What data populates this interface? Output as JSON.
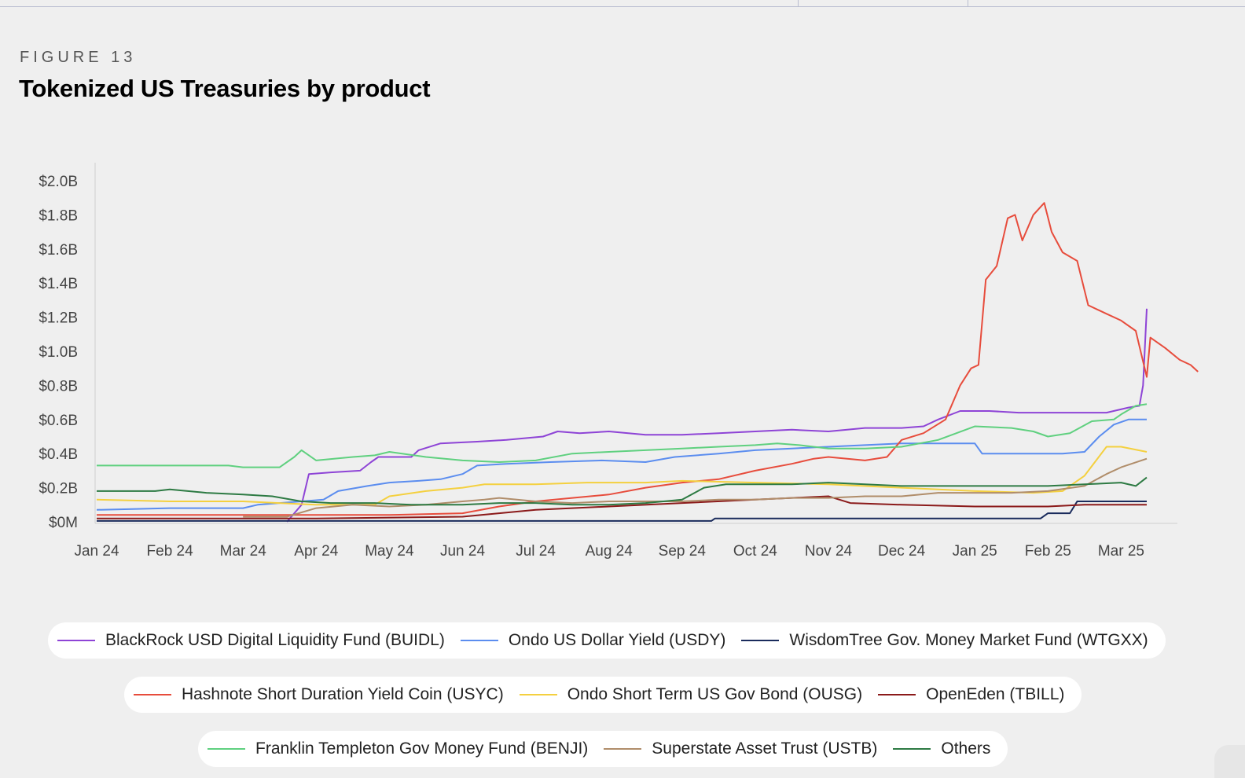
{
  "figure": {
    "label": "FIGURE 13",
    "title": "Tokenized US Treasuries by product"
  },
  "chart_data": {
    "type": "line",
    "title": "Tokenized US Treasuries by product",
    "xlabel": "",
    "ylabel": "",
    "ylim": [
      0,
      2.0
    ],
    "y_unit": "$B",
    "y_ticks": [
      "$0M",
      "$0.2B",
      "$0.4B",
      "$0.6B",
      "$0.8B",
      "$1.0B",
      "$1.2B",
      "$1.4B",
      "$1.6B",
      "$1.8B",
      "$2.0B"
    ],
    "x_ticks": [
      "Jan 24",
      "Feb 24",
      "Mar 24",
      "Apr 24",
      "May 24",
      "Jun 24",
      "Jul 24",
      "Aug 24",
      "Sep 24",
      "Oct 24",
      "Nov 24",
      "Dec 24",
      "Jan 25",
      "Feb 25",
      "Mar 25"
    ],
    "x_unit": "months since Jan 24",
    "grid": false,
    "legend_position": "bottom",
    "series": [
      {
        "name": "BlackRock USD Digital Liquidity Fund (BUIDL)",
        "color": "#8e44d6",
        "points": [
          [
            2.6,
            0
          ],
          [
            2.8,
            0.1
          ],
          [
            2.9,
            0.28
          ],
          [
            3.2,
            0.29
          ],
          [
            3.6,
            0.3
          ],
          [
            3.75,
            0.35
          ],
          [
            3.85,
            0.38
          ],
          [
            4.3,
            0.38
          ],
          [
            4.4,
            0.42
          ],
          [
            4.7,
            0.46
          ],
          [
            5.2,
            0.47
          ],
          [
            5.6,
            0.48
          ],
          [
            6.1,
            0.5
          ],
          [
            6.3,
            0.53
          ],
          [
            6.6,
            0.52
          ],
          [
            7.0,
            0.53
          ],
          [
            7.5,
            0.51
          ],
          [
            8.0,
            0.51
          ],
          [
            8.5,
            0.52
          ],
          [
            9.0,
            0.53
          ],
          [
            9.5,
            0.54
          ],
          [
            10.0,
            0.53
          ],
          [
            10.5,
            0.55
          ],
          [
            11.0,
            0.55
          ],
          [
            11.3,
            0.56
          ],
          [
            11.5,
            0.6
          ],
          [
            11.8,
            0.65
          ],
          [
            12.2,
            0.65
          ],
          [
            12.6,
            0.64
          ],
          [
            13.2,
            0.64
          ],
          [
            13.8,
            0.64
          ],
          [
            14.1,
            0.67
          ],
          [
            14.25,
            0.68
          ],
          [
            14.3,
            0.8
          ],
          [
            14.35,
            1.25
          ]
        ]
      },
      {
        "name": "Ondo US Dollar Yield (USDY)",
        "color": "#5b8def",
        "points": [
          [
            0,
            0.07
          ],
          [
            1.0,
            0.08
          ],
          [
            2.0,
            0.08
          ],
          [
            2.2,
            0.1
          ],
          [
            2.8,
            0.12
          ],
          [
            3.1,
            0.13
          ],
          [
            3.3,
            0.18
          ],
          [
            3.7,
            0.21
          ],
          [
            4.0,
            0.23
          ],
          [
            4.4,
            0.24
          ],
          [
            4.7,
            0.25
          ],
          [
            5.0,
            0.28
          ],
          [
            5.2,
            0.33
          ],
          [
            5.6,
            0.34
          ],
          [
            6.2,
            0.35
          ],
          [
            6.9,
            0.36
          ],
          [
            7.5,
            0.35
          ],
          [
            7.9,
            0.38
          ],
          [
            8.5,
            0.4
          ],
          [
            9.0,
            0.42
          ],
          [
            9.5,
            0.43
          ],
          [
            10.0,
            0.44
          ],
          [
            10.5,
            0.45
          ],
          [
            11.0,
            0.46
          ],
          [
            11.5,
            0.46
          ],
          [
            12.0,
            0.46
          ],
          [
            12.1,
            0.4
          ],
          [
            12.6,
            0.4
          ],
          [
            13.2,
            0.4
          ],
          [
            13.5,
            0.41
          ],
          [
            13.7,
            0.5
          ],
          [
            13.9,
            0.57
          ],
          [
            14.1,
            0.6
          ],
          [
            14.35,
            0.6
          ]
        ]
      },
      {
        "name": "WisdomTree Gov. Money Market Fund (WTGXX)",
        "color": "#1a2b5c",
        "points": [
          [
            0,
            0.005
          ],
          [
            3.0,
            0.005
          ],
          [
            6.0,
            0.005
          ],
          [
            8.4,
            0.005
          ],
          [
            8.45,
            0.02
          ],
          [
            11.0,
            0.02
          ],
          [
            12.0,
            0.02
          ],
          [
            12.9,
            0.02
          ],
          [
            13.0,
            0.05
          ],
          [
            13.3,
            0.05
          ],
          [
            13.4,
            0.12
          ],
          [
            14.35,
            0.12
          ]
        ]
      },
      {
        "name": "Hashnote Short Duration Yield Coin (USYC)",
        "color": "#e74c3c",
        "points": [
          [
            0,
            0.04
          ],
          [
            2.0,
            0.04
          ],
          [
            3.0,
            0.04
          ],
          [
            4.0,
            0.04
          ],
          [
            5.0,
            0.05
          ],
          [
            5.5,
            0.09
          ],
          [
            6.0,
            0.12
          ],
          [
            6.5,
            0.14
          ],
          [
            7.0,
            0.16
          ],
          [
            7.5,
            0.2
          ],
          [
            8.0,
            0.23
          ],
          [
            8.5,
            0.25
          ],
          [
            9.0,
            0.3
          ],
          [
            9.5,
            0.34
          ],
          [
            9.8,
            0.37
          ],
          [
            10.0,
            0.38
          ],
          [
            10.5,
            0.36
          ],
          [
            10.8,
            0.38
          ],
          [
            11.0,
            0.48
          ],
          [
            11.3,
            0.52
          ],
          [
            11.6,
            0.6
          ],
          [
            11.8,
            0.8
          ],
          [
            11.95,
            0.9
          ],
          [
            12.05,
            0.92
          ],
          [
            12.15,
            1.42
          ],
          [
            12.3,
            1.5
          ],
          [
            12.45,
            1.78
          ],
          [
            12.55,
            1.8
          ],
          [
            12.65,
            1.65
          ],
          [
            12.8,
            1.8
          ],
          [
            12.95,
            1.87
          ],
          [
            13.05,
            1.7
          ],
          [
            13.2,
            1.58
          ],
          [
            13.4,
            1.53
          ],
          [
            13.55,
            1.27
          ],
          [
            13.8,
            1.22
          ],
          [
            14.0,
            1.18
          ],
          [
            14.2,
            1.12
          ],
          [
            14.4,
            1.08
          ],
          [
            14.6,
            1.02
          ],
          [
            14.8,
            0.95
          ],
          [
            14.95,
            0.92
          ],
          [
            15.05,
            0.88
          ],
          [
            14.35,
            0.85
          ]
        ]
      },
      {
        "name": "Ondo Short Term US Gov Bond (OUSG)",
        "color": "#f4d03f",
        "points": [
          [
            0,
            0.13
          ],
          [
            1.0,
            0.12
          ],
          [
            2.0,
            0.12
          ],
          [
            3.0,
            0.1
          ],
          [
            3.8,
            0.1
          ],
          [
            4.0,
            0.15
          ],
          [
            4.5,
            0.18
          ],
          [
            5.0,
            0.2
          ],
          [
            5.3,
            0.22
          ],
          [
            6.0,
            0.22
          ],
          [
            6.7,
            0.23
          ],
          [
            7.5,
            0.23
          ],
          [
            8.0,
            0.24
          ],
          [
            9.0,
            0.23
          ],
          [
            10.0,
            0.22
          ],
          [
            11.0,
            0.2
          ],
          [
            12.0,
            0.18
          ],
          [
            12.8,
            0.17
          ],
          [
            13.2,
            0.18
          ],
          [
            13.5,
            0.27
          ],
          [
            13.8,
            0.44
          ],
          [
            14.0,
            0.44
          ],
          [
            14.35,
            0.41
          ]
        ]
      },
      {
        "name": "OpenEden (TBILL)",
        "color": "#8b1a1a",
        "points": [
          [
            0,
            0.02
          ],
          [
            3.0,
            0.02
          ],
          [
            5.0,
            0.03
          ],
          [
            5.5,
            0.05
          ],
          [
            6.0,
            0.07
          ],
          [
            7.0,
            0.09
          ],
          [
            8.0,
            0.11
          ],
          [
            9.0,
            0.13
          ],
          [
            9.5,
            0.14
          ],
          [
            10.0,
            0.15
          ],
          [
            10.3,
            0.11
          ],
          [
            11.0,
            0.1
          ],
          [
            12.0,
            0.09
          ],
          [
            13.0,
            0.09
          ],
          [
            13.5,
            0.1
          ],
          [
            14.35,
            0.1
          ]
        ]
      },
      {
        "name": "Franklin Templeton Gov Money Fund (BENJI)",
        "color": "#5fd07f",
        "points": [
          [
            0,
            0.33
          ],
          [
            1.0,
            0.33
          ],
          [
            1.5,
            0.33
          ],
          [
            1.8,
            0.33
          ],
          [
            2.0,
            0.32
          ],
          [
            2.5,
            0.32
          ],
          [
            2.7,
            0.38
          ],
          [
            2.8,
            0.42
          ],
          [
            3.0,
            0.36
          ],
          [
            3.5,
            0.38
          ],
          [
            3.8,
            0.39
          ],
          [
            4.0,
            0.41
          ],
          [
            4.5,
            0.38
          ],
          [
            5.0,
            0.36
          ],
          [
            5.5,
            0.35
          ],
          [
            6.0,
            0.36
          ],
          [
            6.5,
            0.4
          ],
          [
            7.0,
            0.41
          ],
          [
            7.5,
            0.42
          ],
          [
            8.0,
            0.43
          ],
          [
            8.5,
            0.44
          ],
          [
            9.0,
            0.45
          ],
          [
            9.3,
            0.46
          ],
          [
            9.6,
            0.45
          ],
          [
            10.0,
            0.43
          ],
          [
            10.5,
            0.43
          ],
          [
            11.0,
            0.44
          ],
          [
            11.5,
            0.48
          ],
          [
            12.0,
            0.56
          ],
          [
            12.5,
            0.55
          ],
          [
            12.8,
            0.53
          ],
          [
            13.0,
            0.5
          ],
          [
            13.3,
            0.52
          ],
          [
            13.6,
            0.59
          ],
          [
            13.9,
            0.6
          ],
          [
            14.0,
            0.63
          ],
          [
            14.2,
            0.68
          ],
          [
            14.35,
            0.69
          ]
        ]
      },
      {
        "name": "Superstate Asset Trust (USTB)",
        "color": "#b08d6a",
        "points": [
          [
            2.0,
            0.03
          ],
          [
            2.6,
            0.03
          ],
          [
            3.0,
            0.08
          ],
          [
            3.5,
            0.1
          ],
          [
            4.0,
            0.09
          ],
          [
            4.5,
            0.1
          ],
          [
            5.0,
            0.12
          ],
          [
            5.3,
            0.13
          ],
          [
            5.5,
            0.14
          ],
          [
            6.0,
            0.12
          ],
          [
            6.5,
            0.11
          ],
          [
            7.0,
            0.12
          ],
          [
            7.5,
            0.12
          ],
          [
            8.0,
            0.12
          ],
          [
            8.5,
            0.13
          ],
          [
            9.0,
            0.13
          ],
          [
            9.5,
            0.14
          ],
          [
            10.0,
            0.14
          ],
          [
            10.5,
            0.15
          ],
          [
            11.0,
            0.15
          ],
          [
            11.5,
            0.17
          ],
          [
            12.0,
            0.17
          ],
          [
            12.5,
            0.17
          ],
          [
            13.0,
            0.18
          ],
          [
            13.5,
            0.21
          ],
          [
            13.8,
            0.28
          ],
          [
            14.0,
            0.32
          ],
          [
            14.35,
            0.37
          ]
        ]
      },
      {
        "name": "Others",
        "color": "#2d7a43",
        "points": [
          [
            0,
            0.18
          ],
          [
            0.8,
            0.18
          ],
          [
            1.0,
            0.19
          ],
          [
            1.5,
            0.17
          ],
          [
            2.0,
            0.16
          ],
          [
            2.4,
            0.15
          ],
          [
            2.8,
            0.12
          ],
          [
            3.2,
            0.11
          ],
          [
            3.8,
            0.11
          ],
          [
            4.3,
            0.1
          ],
          [
            5.0,
            0.1
          ],
          [
            5.5,
            0.11
          ],
          [
            6.0,
            0.11
          ],
          [
            6.5,
            0.1
          ],
          [
            7.0,
            0.1
          ],
          [
            7.5,
            0.11
          ],
          [
            8.0,
            0.13
          ],
          [
            8.3,
            0.2
          ],
          [
            8.6,
            0.22
          ],
          [
            9.0,
            0.22
          ],
          [
            9.5,
            0.22
          ],
          [
            10.0,
            0.23
          ],
          [
            10.5,
            0.22
          ],
          [
            11.0,
            0.21
          ],
          [
            11.5,
            0.21
          ],
          [
            12.0,
            0.21
          ],
          [
            12.5,
            0.21
          ],
          [
            13.0,
            0.21
          ],
          [
            13.5,
            0.22
          ],
          [
            14.0,
            0.23
          ],
          [
            14.2,
            0.21
          ],
          [
            14.35,
            0.26
          ]
        ]
      }
    ]
  }
}
